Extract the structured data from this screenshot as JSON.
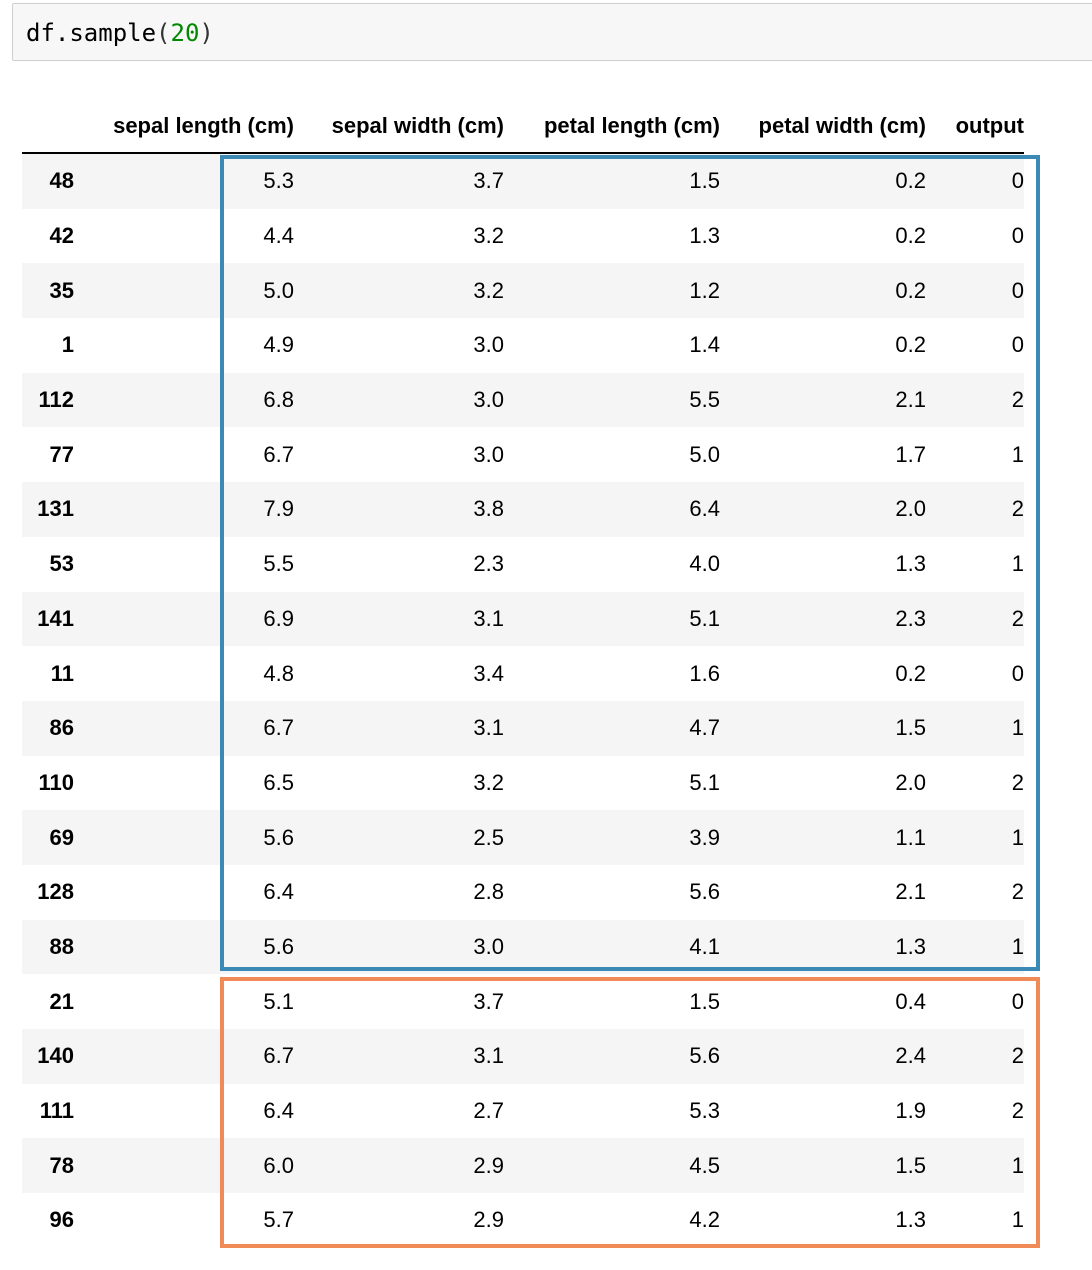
{
  "code_cell": {
    "func": "df.sample",
    "open_paren": "(",
    "arg": "20",
    "close_paren": ")"
  },
  "dataframe": {
    "columns": [
      "sepal length (cm)",
      "sepal width (cm)",
      "petal length (cm)",
      "petal width (cm)",
      "output"
    ],
    "rows": [
      {
        "index": "48",
        "values": [
          "5.3",
          "3.7",
          "1.5",
          "0.2",
          "0"
        ]
      },
      {
        "index": "42",
        "values": [
          "4.4",
          "3.2",
          "1.3",
          "0.2",
          "0"
        ]
      },
      {
        "index": "35",
        "values": [
          "5.0",
          "3.2",
          "1.2",
          "0.2",
          "0"
        ]
      },
      {
        "index": "1",
        "values": [
          "4.9",
          "3.0",
          "1.4",
          "0.2",
          "0"
        ]
      },
      {
        "index": "112",
        "values": [
          "6.8",
          "3.0",
          "5.5",
          "2.1",
          "2"
        ]
      },
      {
        "index": "77",
        "values": [
          "6.7",
          "3.0",
          "5.0",
          "1.7",
          "1"
        ]
      },
      {
        "index": "131",
        "values": [
          "7.9",
          "3.8",
          "6.4",
          "2.0",
          "2"
        ]
      },
      {
        "index": "53",
        "values": [
          "5.5",
          "2.3",
          "4.0",
          "1.3",
          "1"
        ]
      },
      {
        "index": "141",
        "values": [
          "6.9",
          "3.1",
          "5.1",
          "2.3",
          "2"
        ]
      },
      {
        "index": "11",
        "values": [
          "4.8",
          "3.4",
          "1.6",
          "0.2",
          "0"
        ]
      },
      {
        "index": "86",
        "values": [
          "6.7",
          "3.1",
          "4.7",
          "1.5",
          "1"
        ]
      },
      {
        "index": "110",
        "values": [
          "6.5",
          "3.2",
          "5.1",
          "2.0",
          "2"
        ]
      },
      {
        "index": "69",
        "values": [
          "5.6",
          "2.5",
          "3.9",
          "1.1",
          "1"
        ]
      },
      {
        "index": "128",
        "values": [
          "6.4",
          "2.8",
          "5.6",
          "2.1",
          "2"
        ]
      },
      {
        "index": "88",
        "values": [
          "5.6",
          "3.0",
          "4.1",
          "1.3",
          "1"
        ]
      },
      {
        "index": "21",
        "values": [
          "5.1",
          "3.7",
          "1.5",
          "0.4",
          "0"
        ]
      },
      {
        "index": "140",
        "values": [
          "6.7",
          "3.1",
          "5.6",
          "2.4",
          "2"
        ]
      },
      {
        "index": "111",
        "values": [
          "6.4",
          "2.7",
          "5.3",
          "1.9",
          "2"
        ]
      },
      {
        "index": "78",
        "values": [
          "6.0",
          "2.9",
          "4.5",
          "1.5",
          "1"
        ]
      },
      {
        "index": "96",
        "values": [
          "5.7",
          "2.9",
          "4.2",
          "1.3",
          "1"
        ]
      }
    ]
  },
  "highlight_colors": {
    "group_1": "#3a8ab5",
    "group_2": "#f08a56"
  }
}
